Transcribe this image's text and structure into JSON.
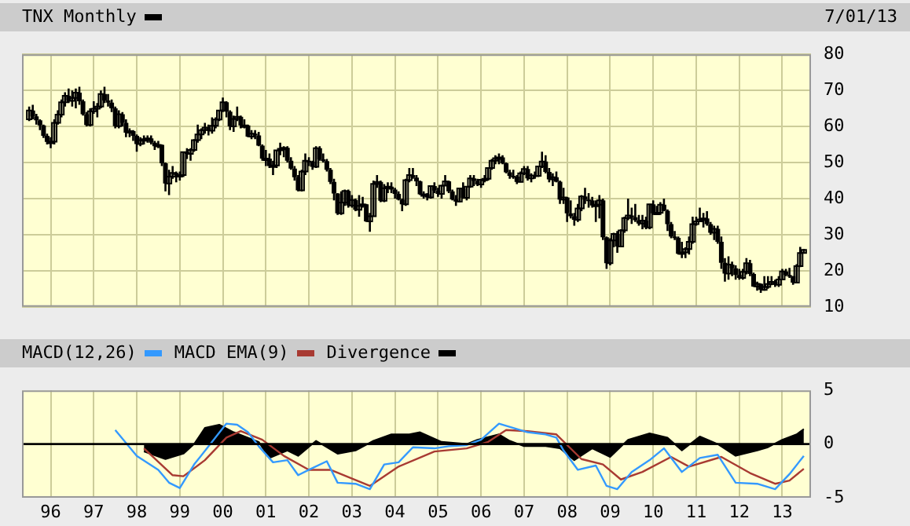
{
  "chart_data": [
    {
      "type": "candlestick",
      "legend": "top left",
      "annotations": [
        "7/01/13"
      ],
      "grid": true,
      "tick_labels": "y",
      "xlim": [
        "1995-05",
        "2013-09"
      ],
      "xticks": [
        {
          "value": "1996-01",
          "label": null
        },
        {
          "value": "1997-01",
          "label": null
        },
        {
          "value": "1998-01",
          "label": null
        },
        {
          "value": "1999-01",
          "label": null
        },
        {
          "value": "2000-01",
          "label": null
        },
        {
          "value": "2001-01",
          "label": null
        },
        {
          "value": "2002-01",
          "label": null
        },
        {
          "value": "2003-01",
          "label": null
        },
        {
          "value": "2004-01",
          "label": null
        },
        {
          "value": "2005-01",
          "label": null
        },
        {
          "value": "2006-01",
          "label": null
        },
        {
          "value": "2007-01",
          "label": null
        },
        {
          "value": "2008-01",
          "label": null
        },
        {
          "value": "2009-01",
          "label": null
        },
        {
          "value": "2010-01",
          "label": null
        },
        {
          "value": "2011-01",
          "label": null
        },
        {
          "value": "2012-01",
          "label": null
        },
        {
          "value": "2013-01",
          "label": null
        }
      ],
      "ylim": [
        10,
        80
      ],
      "yticks": [
        10,
        20,
        30,
        40,
        50,
        60,
        70,
        80
      ],
      "series": [
        {
          "name": "TNX Monthly",
          "color": "#000000",
          "x": [
            "1995-07",
            "1995-08",
            "1995-09",
            "1995-10",
            "1995-11",
            "1995-12",
            "1996-01",
            "1996-02",
            "1996-03",
            "1996-04",
            "1996-05",
            "1996-06",
            "1996-07",
            "1996-08",
            "1996-09",
            "1996-10",
            "1996-11",
            "1996-12",
            "1997-01",
            "1997-02",
            "1997-03",
            "1997-04",
            "1997-05",
            "1997-06",
            "1997-07",
            "1997-08",
            "1997-09",
            "1997-10",
            "1997-11",
            "1997-12",
            "1998-01",
            "1998-02",
            "1998-03",
            "1998-04",
            "1998-05",
            "1998-06",
            "1998-07",
            "1998-08",
            "1998-09",
            "1998-10",
            "1998-11",
            "1998-12",
            "1999-01",
            "1999-02",
            "1999-03",
            "1999-04",
            "1999-05",
            "1999-06",
            "1999-07",
            "1999-08",
            "1999-09",
            "1999-10",
            "1999-11",
            "1999-12",
            "2000-01",
            "2000-02",
            "2000-03",
            "2000-04",
            "2000-05",
            "2000-06",
            "2000-07",
            "2000-08",
            "2000-09",
            "2000-10",
            "2000-11",
            "2000-12",
            "2001-01",
            "2001-02",
            "2001-03",
            "2001-04",
            "2001-05",
            "2001-06",
            "2001-07",
            "2001-08",
            "2001-09",
            "2001-10",
            "2001-11",
            "2001-12",
            "2002-01",
            "2002-02",
            "2002-03",
            "2002-04",
            "2002-05",
            "2002-06",
            "2002-07",
            "2002-08",
            "2002-09",
            "2002-10",
            "2002-11",
            "2002-12",
            "2003-01",
            "2003-02",
            "2003-03",
            "2003-04",
            "2003-05",
            "2003-06",
            "2003-07",
            "2003-08",
            "2003-09",
            "2003-10",
            "2003-11",
            "2003-12",
            "2004-01",
            "2004-02",
            "2004-03",
            "2004-04",
            "2004-05",
            "2004-06",
            "2004-07",
            "2004-08",
            "2004-09",
            "2004-10",
            "2004-11",
            "2004-12",
            "2005-01",
            "2005-02",
            "2005-03",
            "2005-04",
            "2005-05",
            "2005-06",
            "2005-07",
            "2005-08",
            "2005-09",
            "2005-10",
            "2005-11",
            "2005-12",
            "2006-01",
            "2006-02",
            "2006-03",
            "2006-04",
            "2006-05",
            "2006-06",
            "2006-07",
            "2006-08",
            "2006-09",
            "2006-10",
            "2006-11",
            "2006-12",
            "2007-01",
            "2007-02",
            "2007-03",
            "2007-04",
            "2007-05",
            "2007-06",
            "2007-07",
            "2007-08",
            "2007-09",
            "2007-10",
            "2007-11",
            "2007-12",
            "2008-01",
            "2008-02",
            "2008-03",
            "2008-04",
            "2008-05",
            "2008-06",
            "2008-07",
            "2008-08",
            "2008-09",
            "2008-10",
            "2008-11",
            "2008-12",
            "2009-01",
            "2009-02",
            "2009-03",
            "2009-04",
            "2009-05",
            "2009-06",
            "2009-07",
            "2009-08",
            "2009-09",
            "2009-10",
            "2009-11",
            "2009-12",
            "2010-01",
            "2010-02",
            "2010-03",
            "2010-04",
            "2010-05",
            "2010-06",
            "2010-07",
            "2010-08",
            "2010-09",
            "2010-10",
            "2010-11",
            "2010-12",
            "2011-01",
            "2011-02",
            "2011-03",
            "2011-04",
            "2011-05",
            "2011-06",
            "2011-07",
            "2011-08",
            "2011-09",
            "2011-10",
            "2011-11",
            "2011-12",
            "2012-01",
            "2012-02",
            "2012-03",
            "2012-04",
            "2012-05",
            "2012-06",
            "2012-07",
            "2012-08",
            "2012-09",
            "2012-10",
            "2012-11",
            "2012-12",
            "2013-01",
            "2013-02",
            "2013-03",
            "2013-04",
            "2013-05",
            "2013-06",
            "2013-07"
          ],
          "ohlc": [
            [
              62.0,
              65.5,
              61.5,
              64.4
            ],
            [
              64.4,
              66.0,
              62.0,
              62.8
            ],
            [
              62.8,
              63.5,
              60.5,
              61.7
            ],
            [
              61.7,
              62.0,
              59.0,
              60.3
            ],
            [
              60.3,
              60.5,
              56.8,
              57.4
            ],
            [
              57.4,
              58.0,
              55.0,
              55.7
            ],
            [
              55.7,
              57.0,
              54.0,
              55.8
            ],
            [
              55.8,
              62.0,
              55.0,
              61.0
            ],
            [
              61.0,
              64.5,
              60.5,
              63.3
            ],
            [
              63.3,
              67.5,
              62.5,
              66.7
            ],
            [
              66.7,
              69.5,
              65.5,
              68.5
            ],
            [
              68.5,
              70.5,
              66.5,
              67.1
            ],
            [
              67.1,
              70.0,
              65.5,
              67.9
            ],
            [
              67.9,
              70.5,
              65.0,
              69.4
            ],
            [
              69.4,
              71.0,
              66.0,
              67.0
            ],
            [
              67.0,
              67.5,
              63.0,
              63.4
            ],
            [
              63.4,
              64.0,
              60.0,
              60.4
            ],
            [
              60.4,
              65.0,
              60.0,
              64.2
            ],
            [
              64.2,
              67.0,
              63.5,
              64.9
            ],
            [
              64.9,
              66.5,
              62.5,
              65.5
            ],
            [
              65.5,
              70.0,
              65.0,
              69.0
            ],
            [
              69.0,
              71.0,
              66.5,
              67.2
            ],
            [
              67.2,
              69.0,
              65.5,
              66.6
            ],
            [
              66.6,
              67.5,
              64.0,
              65.0
            ],
            [
              65.0,
              65.5,
              59.5,
              60.1
            ],
            [
              60.1,
              64.5,
              59.5,
              63.4
            ],
            [
              63.4,
              64.0,
              60.0,
              61.0
            ],
            [
              61.0,
              62.0,
              57.0,
              58.3
            ],
            [
              58.3,
              59.5,
              57.0,
              58.7
            ],
            [
              58.7,
              59.0,
              56.0,
              57.4
            ],
            [
              57.4,
              57.8,
              53.0,
              55.1
            ],
            [
              55.1,
              57.0,
              54.5,
              56.2
            ],
            [
              56.2,
              57.5,
              55.0,
              56.5
            ],
            [
              56.5,
              57.5,
              55.5,
              56.7
            ],
            [
              56.7,
              57.5,
              55.0,
              55.5
            ],
            [
              55.5,
              56.0,
              53.5,
              54.5
            ],
            [
              54.5,
              56.0,
              54.0,
              54.9
            ],
            [
              54.9,
              55.0,
              49.0,
              49.8
            ],
            [
              49.8,
              50.0,
              42.0,
              44.2
            ],
            [
              44.2,
              48.0,
              41.0,
              46.1
            ],
            [
              46.1,
              49.0,
              45.5,
              47.1
            ],
            [
              47.1,
              47.5,
              44.5,
              46.5
            ],
            [
              46.5,
              47.5,
              45.0,
              46.5
            ],
            [
              46.5,
              53.0,
              46.0,
              52.9
            ],
            [
              52.9,
              54.0,
              51.0,
              52.4
            ],
            [
              52.4,
              54.0,
              50.5,
              53.5
            ],
            [
              53.5,
              56.5,
              53.0,
              56.2
            ],
            [
              56.2,
              60.5,
              55.5,
              57.8
            ],
            [
              57.8,
              59.5,
              56.5,
              59.0
            ],
            [
              59.0,
              61.0,
              58.0,
              59.7
            ],
            [
              59.7,
              60.5,
              57.5,
              58.8
            ],
            [
              58.8,
              62.5,
              58.0,
              60.2
            ],
            [
              60.2,
              62.5,
              59.5,
              61.9
            ],
            [
              61.9,
              64.5,
              61.5,
              64.4
            ],
            [
              64.4,
              68.0,
              64.0,
              66.7
            ],
            [
              66.7,
              67.0,
              62.5,
              64.1
            ],
            [
              64.1,
              64.5,
              59.0,
              60.0
            ],
            [
              60.0,
              63.0,
              58.5,
              62.1
            ],
            [
              62.1,
              65.5,
              61.5,
              62.7
            ],
            [
              62.7,
              63.0,
              59.5,
              60.3
            ],
            [
              60.3,
              62.0,
              59.5,
              60.3
            ],
            [
              60.3,
              60.5,
              57.0,
              57.2
            ],
            [
              57.2,
              59.0,
              56.5,
              58.0
            ],
            [
              58.0,
              59.0,
              56.5,
              57.5
            ],
            [
              57.5,
              58.5,
              54.5,
              54.7
            ],
            [
              54.7,
              55.0,
              50.5,
              51.1
            ],
            [
              51.1,
              53.5,
              49.0,
              51.1
            ],
            [
              51.1,
              52.5,
              48.5,
              49.0
            ],
            [
              49.0,
              50.5,
              46.5,
              49.2
            ],
            [
              49.2,
              53.5,
              48.5,
              53.4
            ],
            [
              53.4,
              55.5,
              52.0,
              53.8
            ],
            [
              53.8,
              54.5,
              51.5,
              54.1
            ],
            [
              54.1,
              54.5,
              50.0,
              50.5
            ],
            [
              50.5,
              51.5,
              48.0,
              48.3
            ],
            [
              48.3,
              49.0,
              45.0,
              45.9
            ],
            [
              45.9,
              46.5,
              42.0,
              42.3
            ],
            [
              42.3,
              48.0,
              42.0,
              47.5
            ],
            [
              47.5,
              52.5,
              46.5,
              50.5
            ],
            [
              50.5,
              51.5,
              49.0,
              50.3
            ],
            [
              50.3,
              50.5,
              48.0,
              48.8
            ],
            [
              48.8,
              54.5,
              48.5,
              54.0
            ],
            [
              54.0,
              54.5,
              50.5,
              50.9
            ],
            [
              50.9,
              52.5,
              50.0,
              50.4
            ],
            [
              50.4,
              51.0,
              47.5,
              48.0
            ],
            [
              48.0,
              48.5,
              44.0,
              44.6
            ],
            [
              44.6,
              45.5,
              39.5,
              41.4
            ],
            [
              41.4,
              41.5,
              35.5,
              35.9
            ],
            [
              35.9,
              42.0,
              35.5,
              38.9
            ],
            [
              38.9,
              42.5,
              38.0,
              42.1
            ],
            [
              42.1,
              42.5,
              37.5,
              38.1
            ],
            [
              38.1,
              41.0,
              37.5,
              39.6
            ],
            [
              39.6,
              40.0,
              36.5,
              36.9
            ],
            [
              36.9,
              41.0,
              35.0,
              38.0
            ],
            [
              38.0,
              40.5,
              37.5,
              38.4
            ],
            [
              38.4,
              38.5,
              33.5,
              33.7
            ],
            [
              33.7,
              36.0,
              30.8,
              35.1
            ],
            [
              35.1,
              45.0,
              35.0,
              44.1
            ],
            [
              44.1,
              46.5,
              43.0,
              44.6
            ],
            [
              44.6,
              45.0,
              39.0,
              39.4
            ],
            [
              39.4,
              44.0,
              39.0,
              42.9
            ],
            [
              42.9,
              44.5,
              41.5,
              43.3
            ],
            [
              43.3,
              44.5,
              41.5,
              42.5
            ],
            [
              42.5,
              43.0,
              40.0,
              41.3
            ],
            [
              41.3,
              42.0,
              39.5,
              39.7
            ],
            [
              39.7,
              40.0,
              36.5,
              38.4
            ],
            [
              38.4,
              45.5,
              38.0,
              45.1
            ],
            [
              45.1,
              48.5,
              44.5,
              46.5
            ],
            [
              46.5,
              48.5,
              45.5,
              45.8
            ],
            [
              45.8,
              46.5,
              43.5,
              44.8
            ],
            [
              44.8,
              45.0,
              41.0,
              41.2
            ],
            [
              41.2,
              42.0,
              40.0,
              41.2
            ],
            [
              41.2,
              41.5,
              39.5,
              40.3
            ],
            [
              40.3,
              43.5,
              40.0,
              43.5
            ],
            [
              43.5,
              44.5,
              41.5,
              42.2
            ],
            [
              42.2,
              43.0,
              40.5,
              41.3
            ],
            [
              41.3,
              43.8,
              40.0,
              43.6
            ],
            [
              43.6,
              46.5,
              43.5,
              44.8
            ],
            [
              44.8,
              45.0,
              41.5,
              42.0
            ],
            [
              42.0,
              42.5,
              39.5,
              39.8
            ],
            [
              39.8,
              41.0,
              38.0,
              39.2
            ],
            [
              39.2,
              43.0,
              39.0,
              42.8
            ],
            [
              42.8,
              44.5,
              40.0,
              40.2
            ],
            [
              40.2,
              43.5,
              39.5,
              43.3
            ],
            [
              43.3,
              46.5,
              43.0,
              45.6
            ],
            [
              45.6,
              46.5,
              43.5,
              44.9
            ],
            [
              44.9,
              45.5,
              43.5,
              43.9
            ],
            [
              43.9,
              45.5,
              43.0,
              45.2
            ],
            [
              45.2,
              46.5,
              44.5,
              45.5
            ],
            [
              45.5,
              48.5,
              45.0,
              48.5
            ],
            [
              48.5,
              51.0,
              48.0,
              50.5
            ],
            [
              50.5,
              52.0,
              49.5,
              51.2
            ],
            [
              51.2,
              52.5,
              49.5,
              51.4
            ],
            [
              51.4,
              52.0,
              49.5,
              49.8
            ],
            [
              49.8,
              50.0,
              47.0,
              47.3
            ],
            [
              47.3,
              48.0,
              45.5,
              46.3
            ],
            [
              46.3,
              48.0,
              45.5,
              46.1
            ],
            [
              46.1,
              46.5,
              44.0,
              44.6
            ],
            [
              44.6,
              47.5,
              44.5,
              47.0
            ],
            [
              47.0,
              49.0,
              46.5,
              48.2
            ],
            [
              48.2,
              49.0,
              45.0,
              45.6
            ],
            [
              45.6,
              47.0,
              44.5,
              46.4
            ],
            [
              46.4,
              47.5,
              45.5,
              46.3
            ],
            [
              46.3,
              49.0,
              46.0,
              48.9
            ],
            [
              48.9,
              53.0,
              48.5,
              50.3
            ],
            [
              50.3,
              52.0,
              47.0,
              47.4
            ],
            [
              47.4,
              48.5,
              44.5,
              45.3
            ],
            [
              45.3,
              47.0,
              43.5,
              45.9
            ],
            [
              45.9,
              47.5,
              44.5,
              44.7
            ],
            [
              44.7,
              45.0,
              38.5,
              39.7
            ],
            [
              39.7,
              43.0,
              38.5,
              40.3
            ],
            [
              40.3,
              40.5,
              33.5,
              35.9
            ],
            [
              35.9,
              39.5,
              34.5,
              35.1
            ],
            [
              35.1,
              36.0,
              32.5,
              34.1
            ],
            [
              34.1,
              38.5,
              33.5,
              37.3
            ],
            [
              37.3,
              41.0,
              36.5,
              40.6
            ],
            [
              40.6,
              43.0,
              38.5,
              39.7
            ],
            [
              39.7,
              41.5,
              37.5,
              39.5
            ],
            [
              39.5,
              40.5,
              37.5,
              38.1
            ],
            [
              38.1,
              39.5,
              33.5,
              38.3
            ],
            [
              38.3,
              41.0,
              34.5,
              39.5
            ],
            [
              39.5,
              40.0,
              28.5,
              29.3
            ],
            [
              29.3,
              29.5,
              20.5,
              22.1
            ],
            [
              22.1,
              29.0,
              21.5,
              28.4
            ],
            [
              28.4,
              30.5,
              26.5,
              30.2
            ],
            [
              30.2,
              31.0,
              25.0,
              26.7
            ],
            [
              26.7,
              31.5,
              26.5,
              31.2
            ],
            [
              31.2,
              35.0,
              30.5,
              34.6
            ],
            [
              34.6,
              40.0,
              34.0,
              35.3
            ],
            [
              35.3,
              37.5,
              33.0,
              34.8
            ],
            [
              34.8,
              38.5,
              33.5,
              34.0
            ],
            [
              34.0,
              35.5,
              32.5,
              33.1
            ],
            [
              33.1,
              35.5,
              31.5,
              33.9
            ],
            [
              33.9,
              35.0,
              31.5,
              32.0
            ],
            [
              32.0,
              38.5,
              31.5,
              38.4
            ],
            [
              38.4,
              39.5,
              35.5,
              35.9
            ],
            [
              35.9,
              38.0,
              35.5,
              36.1
            ],
            [
              36.1,
              39.0,
              35.5,
              38.3
            ],
            [
              38.3,
              40.0,
              36.5,
              36.6
            ],
            [
              36.6,
              37.0,
              31.0,
              32.9
            ],
            [
              32.9,
              33.5,
              29.0,
              29.5
            ],
            [
              29.5,
              31.0,
              28.5,
              29.1
            ],
            [
              29.1,
              29.5,
              24.5,
              24.7
            ],
            [
              24.7,
              28.0,
              23.5,
              25.1
            ],
            [
              25.1,
              26.5,
              23.5,
              26.0
            ],
            [
              26.0,
              29.5,
              24.5,
              28.0
            ],
            [
              28.0,
              35.0,
              27.5,
              32.9
            ],
            [
              32.9,
              35.0,
              32.5,
              33.7
            ],
            [
              33.7,
              37.5,
              33.5,
              34.2
            ],
            [
              34.2,
              36.0,
              32.0,
              34.5
            ],
            [
              34.5,
              36.5,
              32.5,
              32.9
            ],
            [
              32.9,
              33.5,
              30.0,
              30.5
            ],
            [
              30.5,
              32.5,
              28.5,
              31.6
            ],
            [
              31.6,
              32.5,
              27.5,
              28.0
            ],
            [
              28.0,
              29.5,
              20.5,
              22.2
            ],
            [
              22.2,
              23.5,
              17.0,
              19.2
            ],
            [
              19.2,
              24.0,
              17.5,
              21.7
            ],
            [
              21.7,
              22.5,
              18.5,
              20.7
            ],
            [
              20.7,
              21.5,
              17.5,
              18.8
            ],
            [
              18.8,
              20.5,
              17.5,
              18.0
            ],
            [
              18.0,
              20.5,
              17.5,
              19.7
            ],
            [
              19.7,
              23.5,
              19.0,
              22.1
            ],
            [
              22.1,
              23.0,
              18.5,
              19.1
            ],
            [
              19.1,
              19.5,
              15.5,
              15.6
            ],
            [
              15.6,
              17.0,
              14.5,
              16.4
            ],
            [
              16.4,
              16.5,
              13.9,
              14.7
            ],
            [
              14.7,
              18.5,
              14.5,
              15.5
            ],
            [
              15.5,
              18.5,
              15.0,
              16.3
            ],
            [
              16.3,
              18.5,
              16.0,
              16.9
            ],
            [
              16.9,
              17.5,
              15.5,
              16.1
            ],
            [
              16.1,
              18.5,
              15.5,
              17.6
            ],
            [
              17.6,
              20.5,
              17.5,
              19.8
            ],
            [
              19.8,
              20.5,
              18.5,
              18.8
            ],
            [
              18.8,
              20.8,
              18.0,
              18.5
            ],
            [
              18.5,
              18.5,
              16.1,
              16.7
            ],
            [
              16.7,
              21.8,
              16.5,
              21.3
            ],
            [
              21.3,
              26.6,
              21.0,
              24.9
            ],
            [
              24.9,
              26.0,
              24.8,
              25.8
            ]
          ]
        }
      ]
    },
    {
      "type": "line",
      "legend": "top left",
      "grid": "x",
      "xlim": [
        "1995-05",
        "2013-09"
      ],
      "xticks": [
        {
          "value": "1996-01",
          "label": "96"
        },
        {
          "value": "1997-01",
          "label": "97"
        },
        {
          "value": "1998-01",
          "label": "98"
        },
        {
          "value": "1999-01",
          "label": "99"
        },
        {
          "value": "2000-01",
          "label": "00"
        },
        {
          "value": "2001-01",
          "label": "01"
        },
        {
          "value": "2002-01",
          "label": "02"
        },
        {
          "value": "2003-01",
          "label": "03"
        },
        {
          "value": "2004-01",
          "label": "04"
        },
        {
          "value": "2005-01",
          "label": "05"
        },
        {
          "value": "2006-01",
          "label": "06"
        },
        {
          "value": "2007-01",
          "label": "07"
        },
        {
          "value": "2008-01",
          "label": "08"
        },
        {
          "value": "2009-01",
          "label": "09"
        },
        {
          "value": "2010-01",
          "label": "10"
        },
        {
          "value": "2011-01",
          "label": "11"
        },
        {
          "value": "2012-01",
          "label": "12"
        },
        {
          "value": "2013-01",
          "label": "13"
        }
      ],
      "ylim": [
        -5,
        5
      ],
      "yticks": [
        -5,
        0,
        5
      ],
      "ref_lines": [
        {
          "axis": "y",
          "value": 0,
          "color": "#000000"
        }
      ],
      "series": [
        {
          "name": "MACD(12,26)",
          "color": "#3399ff",
          "x": [
            "1997-07",
            "1998-01",
            "1998-07",
            "1998-10",
            "1999-01",
            "1999-05",
            "1999-10",
            "2000-02",
            "2000-05",
            "2000-08",
            "2000-11",
            "2001-03",
            "2001-07",
            "2001-10",
            "2002-01",
            "2002-06",
            "2002-09",
            "2003-02",
            "2003-06",
            "2003-10",
            "2004-02",
            "2004-06",
            "2004-12",
            "2005-04",
            "2005-09",
            "2006-01",
            "2006-06",
            "2006-10",
            "2007-02",
            "2007-07",
            "2007-10",
            "2007-12",
            "2008-04",
            "2008-09",
            "2008-12",
            "2009-03",
            "2009-07",
            "2009-12",
            "2010-04",
            "2010-09",
            "2011-02",
            "2011-07",
            "2011-12",
            "2012-06",
            "2012-11",
            "2013-03",
            "2013-07"
          ],
          "values": [
            1.3,
            -1.1,
            -2.4,
            -3.6,
            -4.1,
            -1.9,
            0.2,
            1.9,
            1.8,
            1.1,
            -0.2,
            -1.7,
            -1.5,
            -2.9,
            -2.4,
            -1.6,
            -3.6,
            -3.7,
            -4.2,
            -1.9,
            -1.7,
            -0.3,
            -0.4,
            -0.2,
            -0.1,
            0.4,
            1.9,
            1.5,
            1.1,
            0.9,
            0.6,
            -0.6,
            -2.4,
            -2.0,
            -3.9,
            -4.2,
            -2.6,
            -1.5,
            -0.4,
            -2.6,
            -1.3,
            -1.0,
            -3.6,
            -3.7,
            -4.2,
            -2.8,
            -1.1
          ]
        },
        {
          "name": "MACD EMA(9)",
          "color": "#a83a32",
          "x": [
            "1998-03",
            "1998-11",
            "1999-02",
            "1999-08",
            "2000-02",
            "2000-06",
            "2000-12",
            "2001-06",
            "2002-01",
            "2002-07",
            "2003-06",
            "2004-02",
            "2004-12",
            "2005-09",
            "2006-03",
            "2006-08",
            "2007-02",
            "2007-10",
            "2008-05",
            "2008-11",
            "2009-04",
            "2009-10",
            "2010-06",
            "2010-11",
            "2011-08",
            "2012-04",
            "2012-11",
            "2013-03",
            "2013-07"
          ],
          "values": [
            -0.4,
            -2.9,
            -3.0,
            -1.5,
            0.6,
            1.2,
            0.4,
            -1.1,
            -2.4,
            -2.4,
            -3.9,
            -2.1,
            -0.7,
            -0.4,
            0.2,
            1.3,
            1.2,
            0.9,
            -1.4,
            -1.9,
            -3.3,
            -2.6,
            -1.2,
            -2.1,
            -1.2,
            -2.7,
            -3.7,
            -3.4,
            -2.3
          ]
        },
        {
          "name": "Divergence",
          "type": "area",
          "color": "#000000",
          "x": [
            "1998-03",
            "1998-09",
            "1999-02",
            "1999-05",
            "1999-08",
            "1999-12",
            "2000-04",
            "2000-11",
            "2001-02",
            "2001-07",
            "2001-10",
            "2002-03",
            "2002-09",
            "2003-02",
            "2003-07",
            "2003-12",
            "2004-05",
            "2004-08",
            "2005-02",
            "2005-09",
            "2005-12",
            "2006-06",
            "2006-09",
            "2007-01",
            "2007-07",
            "2007-11",
            "2008-03",
            "2008-08",
            "2009-01",
            "2009-06",
            "2009-12",
            "2010-05",
            "2010-09",
            "2011-02",
            "2011-07",
            "2011-12",
            "2012-06",
            "2012-09",
            "2013-01",
            "2013-05",
            "2013-07"
          ],
          "values": [
            -0.7,
            -1.4,
            -0.9,
            0,
            1.5,
            1.8,
            1.1,
            0.2,
            -1.3,
            -0.6,
            -1.1,
            0.3,
            -0.9,
            -0.6,
            0.3,
            0.9,
            0.9,
            1.1,
            0.2,
            0,
            0.4,
            0.9,
            0.3,
            -0.2,
            -0.2,
            -0.4,
            -1.5,
            -0.4,
            -1.2,
            0.4,
            1.0,
            0.6,
            -0.6,
            0.7,
            0,
            -1.1,
            -0.6,
            -0.3,
            0.4,
            0.9,
            1.4
          ]
        }
      ]
    }
  ]
}
